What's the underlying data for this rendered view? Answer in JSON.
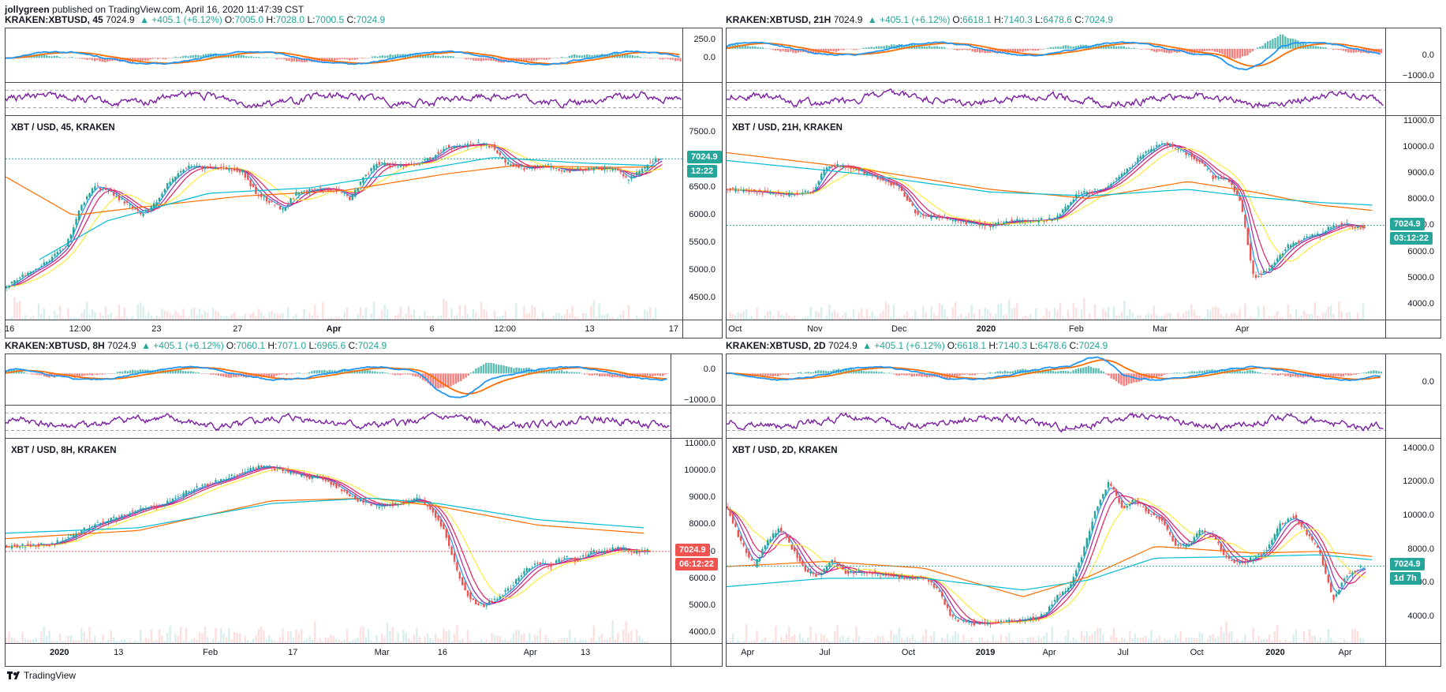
{
  "publish_info": {
    "author": "jollygreen",
    "text": "published on TradingView.com, April 16, 2020 11:47:39 CST"
  },
  "footer": {
    "logo_text": "TradingView"
  },
  "colors": {
    "up": "#26a69a",
    "down": "#ef5350",
    "ema_blue": "#2196f3",
    "ema_purple": "#9c27b0",
    "ema_magenta": "#e91e63",
    "ema_yellow": "#ffeb3b",
    "ema_orange": "#ff6d00",
    "ema_cyan": "#00bcd4",
    "rsi": "#7b1fa2",
    "macd_line": "#2196f3",
    "signal_line": "#ff6d00",
    "last_price_green": "#26a69a",
    "last_price_red": "#ef5350"
  },
  "panels": [
    {
      "symbol": "KRAKEN:XBTUSD, 45",
      "price": "7024.9",
      "change": "▲ +405.1 (+6.12%)",
      "o_label": "O:",
      "o": "7005.0",
      "h_label": "H:",
      "h": "7028.0",
      "l_label": "L:",
      "l": "7000.5",
      "c_label": "C:",
      "c": "7024.9",
      "chart_title": "XBT / USD, 45, KRAKEN",
      "macd_axis": [
        "250.0",
        "0.0"
      ],
      "price_axis": [
        "7500.0",
        "7000.0",
        "6500.0",
        "6000.0",
        "5500.0",
        "5000.0",
        "4500.0"
      ],
      "time_axis": [
        {
          "label": "16",
          "bold": false
        },
        {
          "label": "12:00",
          "bold": false
        },
        {
          "label": "23",
          "bold": false
        },
        {
          "label": "27",
          "bold": false
        },
        {
          "label": "Apr",
          "bold": true
        },
        {
          "label": "6",
          "bold": false
        },
        {
          "label": "12:00",
          "bold": false
        },
        {
          "label": "13",
          "bold": false
        },
        {
          "label": "17",
          "bold": false
        }
      ],
      "last_price": "7024.9",
      "countdown": "12:22",
      "tag_color": "green"
    },
    {
      "symbol": "KRAKEN:XBTUSD, 21H",
      "price": "7024.9",
      "change": "▲ +405.1 (+6.12%)",
      "o_label": "O:",
      "o": "6618.1",
      "h_label": "H:",
      "h": "7140.3",
      "l_label": "L:",
      "l": "6478.6",
      "c_label": "C:",
      "c": "7024.9",
      "chart_title": "XBT / USD, 21H, KRAKEN",
      "macd_axis": [
        "0.0",
        "−1000.0"
      ],
      "price_axis": [
        "11000.0",
        "10000.0",
        "9000.0",
        "8000.0",
        "7000.0",
        "6000.0",
        "5000.0",
        "4000.0"
      ],
      "time_axis": [
        {
          "label": "Oct",
          "bold": false
        },
        {
          "label": "Nov",
          "bold": false
        },
        {
          "label": "Dec",
          "bold": false
        },
        {
          "label": "2020",
          "bold": true
        },
        {
          "label": "Feb",
          "bold": false
        },
        {
          "label": "Mar",
          "bold": false
        },
        {
          "label": "Apr",
          "bold": false
        }
      ],
      "last_price": "7024.9",
      "countdown": "03:12:22",
      "tag_color": "green"
    },
    {
      "symbol": "KRAKEN:XBTUSD, 8H",
      "price": "7024.9",
      "change": "▲ +405.1 (+6.12%)",
      "o_label": "O:",
      "o": "7060.1",
      "h_label": "H:",
      "h": "7071.0",
      "l_label": "L:",
      "l": "6965.6",
      "c_label": "C:",
      "c": "7024.9",
      "chart_title": "XBT / USD, 8H, KRAKEN",
      "macd_axis": [
        "0.0",
        "−1000.0"
      ],
      "price_axis": [
        "11000.0",
        "10000.0",
        "9000.0",
        "8000.0",
        "7000.0",
        "6000.0",
        "5000.0",
        "4000.0"
      ],
      "time_axis": [
        {
          "label": "2020",
          "bold": true
        },
        {
          "label": "13",
          "bold": false
        },
        {
          "label": "Feb",
          "bold": false
        },
        {
          "label": "17",
          "bold": false
        },
        {
          "label": "Mar",
          "bold": false
        },
        {
          "label": "16",
          "bold": false
        },
        {
          "label": "Apr",
          "bold": false
        },
        {
          "label": "13",
          "bold": false
        }
      ],
      "last_price": "7024.9",
      "countdown": "06:12:22",
      "tag_color": "red"
    },
    {
      "symbol": "KRAKEN:XBTUSD, 2D",
      "price": "7024.9",
      "change": "▲ +405.1 (+6.12%)",
      "o_label": "O:",
      "o": "6618.1",
      "h_label": "H:",
      "h": "7140.3",
      "l_label": "L:",
      "l": "6478.6",
      "c_label": "C:",
      "c": "7024.9",
      "chart_title": "XBT / USD, 2D, KRAKEN",
      "macd_axis": [
        "0.0"
      ],
      "price_axis": [
        "14000.0",
        "12000.0",
        "10000.0",
        "8000.0",
        "6000.0",
        "4000.0"
      ],
      "time_axis": [
        {
          "label": "Apr",
          "bold": false
        },
        {
          "label": "Jul",
          "bold": false
        },
        {
          "label": "Oct",
          "bold": false
        },
        {
          "label": "2019",
          "bold": true
        },
        {
          "label": "Apr",
          "bold": false
        },
        {
          "label": "Jul",
          "bold": false
        },
        {
          "label": "Oct",
          "bold": false
        },
        {
          "label": "2020",
          "bold": true
        },
        {
          "label": "Apr",
          "bold": false
        }
      ],
      "last_price": "7024.9",
      "countdown": "1d 7h",
      "tag_color": "green"
    }
  ],
  "chart_data": [
    {
      "type": "line",
      "subtype": "candlestick",
      "title": "XBT / USD, 45, KRAKEN",
      "ylim": [
        4100,
        7800
      ],
      "x_range": [
        "Mar 16",
        "Apr 17"
      ],
      "last_price": 7024.9,
      "price_path": [
        [
          0,
          4700
        ],
        [
          0.03,
          4950
        ],
        [
          0.06,
          5150
        ],
        [
          0.09,
          5500
        ],
        [
          0.11,
          6150
        ],
        [
          0.13,
          6550
        ],
        [
          0.15,
          6450
        ],
        [
          0.18,
          6200
        ],
        [
          0.2,
          6000
        ],
        [
          0.22,
          6200
        ],
        [
          0.24,
          6600
        ],
        [
          0.27,
          6900
        ],
        [
          0.3,
          6850
        ],
        [
          0.33,
          6850
        ],
        [
          0.35,
          6800
        ],
        [
          0.37,
          6400
        ],
        [
          0.39,
          6250
        ],
        [
          0.41,
          6100
        ],
        [
          0.43,
          6400
        ],
        [
          0.45,
          6450
        ],
        [
          0.47,
          6500
        ],
        [
          0.49,
          6450
        ],
        [
          0.51,
          6300
        ],
        [
          0.53,
          6700
        ],
        [
          0.55,
          6950
        ],
        [
          0.58,
          6900
        ],
        [
          0.61,
          6950
        ],
        [
          0.63,
          7050
        ],
        [
          0.65,
          7250
        ],
        [
          0.67,
          7250
        ],
        [
          0.7,
          7300
        ],
        [
          0.72,
          7250
        ],
        [
          0.74,
          6950
        ],
        [
          0.77,
          6850
        ],
        [
          0.8,
          6900
        ],
        [
          0.83,
          6800
        ],
        [
          0.86,
          6850
        ],
        [
          0.9,
          6850
        ],
        [
          0.92,
          6650
        ],
        [
          0.94,
          6800
        ],
        [
          0.96,
          7030
        ]
      ],
      "ema_slow": [
        [
          0,
          6700
        ],
        [
          0.1,
          6000
        ],
        [
          0.2,
          6150
        ],
        [
          0.35,
          6350
        ],
        [
          0.5,
          6450
        ],
        [
          0.65,
          6750
        ],
        [
          0.75,
          6900
        ],
        [
          0.9,
          6870
        ],
        [
          0.96,
          6880
        ]
      ],
      "ema_slow2": [
        [
          0.05,
          5200
        ],
        [
          0.15,
          5900
        ],
        [
          0.3,
          6400
        ],
        [
          0.45,
          6500
        ],
        [
          0.6,
          6800
        ],
        [
          0.72,
          7050
        ],
        [
          0.85,
          6950
        ],
        [
          0.96,
          6900
        ]
      ]
    },
    {
      "type": "line",
      "subtype": "candlestick",
      "title": "XBT / USD, 21H, KRAKEN",
      "ylim": [
        3400,
        11200
      ],
      "x_range": [
        "Sep 24 2019",
        "Apr 16 2020"
      ],
      "last_price": 7024.9,
      "price_path": [
        [
          0,
          8400
        ],
        [
          0.05,
          8300
        ],
        [
          0.09,
          8200
        ],
        [
          0.13,
          8300
        ],
        [
          0.15,
          9300
        ],
        [
          0.18,
          9300
        ],
        [
          0.22,
          8900
        ],
        [
          0.26,
          8500
        ],
        [
          0.29,
          7400
        ],
        [
          0.33,
          7300
        ],
        [
          0.37,
          7100
        ],
        [
          0.4,
          7000
        ],
        [
          0.43,
          7200
        ],
        [
          0.47,
          7200
        ],
        [
          0.5,
          7300
        ],
        [
          0.53,
          8200
        ],
        [
          0.57,
          8400
        ],
        [
          0.6,
          9000
        ],
        [
          0.63,
          9700
        ],
        [
          0.66,
          10200
        ],
        [
          0.68,
          10000
        ],
        [
          0.7,
          9700
        ],
        [
          0.72,
          9400
        ],
        [
          0.74,
          8800
        ],
        [
          0.76,
          8800
        ],
        [
          0.78,
          7900
        ],
        [
          0.8,
          5000
        ],
        [
          0.82,
          5300
        ],
        [
          0.85,
          6200
        ],
        [
          0.88,
          6600
        ],
        [
          0.9,
          6700
        ],
        [
          0.92,
          7000
        ],
        [
          0.94,
          7100
        ],
        [
          0.96,
          6900
        ],
        [
          0.98,
          7030
        ]
      ],
      "ema_slow": [
        [
          0,
          9800
        ],
        [
          0.2,
          9200
        ],
        [
          0.4,
          8400
        ],
        [
          0.55,
          8050
        ],
        [
          0.7,
          8700
        ],
        [
          0.8,
          8300
        ],
        [
          0.9,
          7800
        ],
        [
          0.98,
          7600
        ]
      ],
      "ema_slow2": [
        [
          0,
          9500
        ],
        [
          0.2,
          9000
        ],
        [
          0.4,
          8300
        ],
        [
          0.55,
          8150
        ],
        [
          0.7,
          8400
        ],
        [
          0.8,
          8100
        ],
        [
          0.9,
          7900
        ],
        [
          0.98,
          7800
        ]
      ]
    },
    {
      "type": "line",
      "subtype": "candlestick",
      "title": "XBT / USD, 8H, KRAKEN",
      "ylim": [
        3600,
        11200
      ],
      "x_range": [
        "Dec 20 2019",
        "Apr 16 2020"
      ],
      "last_price": 7024.9,
      "price_path": [
        [
          0,
          7200
        ],
        [
          0.04,
          7250
        ],
        [
          0.07,
          7300
        ],
        [
          0.1,
          7600
        ],
        [
          0.13,
          8000
        ],
        [
          0.17,
          8300
        ],
        [
          0.2,
          8600
        ],
        [
          0.24,
          8800
        ],
        [
          0.27,
          9200
        ],
        [
          0.3,
          9500
        ],
        [
          0.33,
          9700
        ],
        [
          0.36,
          10000
        ],
        [
          0.39,
          10200
        ],
        [
          0.42,
          10000
        ],
        [
          0.45,
          9800
        ],
        [
          0.48,
          9700
        ],
        [
          0.5,
          9400
        ],
        [
          0.53,
          8900
        ],
        [
          0.56,
          8700
        ],
        [
          0.59,
          8800
        ],
        [
          0.62,
          9000
        ],
        [
          0.64,
          8600
        ],
        [
          0.66,
          7800
        ],
        [
          0.68,
          6200
        ],
        [
          0.7,
          5200
        ],
        [
          0.72,
          5000
        ],
        [
          0.74,
          5300
        ],
        [
          0.76,
          5700
        ],
        [
          0.78,
          6300
        ],
        [
          0.8,
          6600
        ],
        [
          0.82,
          6500
        ],
        [
          0.84,
          6800
        ],
        [
          0.86,
          6700
        ],
        [
          0.88,
          7000
        ],
        [
          0.9,
          7000
        ],
        [
          0.92,
          7200
        ],
        [
          0.94,
          7000
        ],
        [
          0.96,
          7030
        ]
      ],
      "ema_slow": [
        [
          0,
          7500
        ],
        [
          0.2,
          7800
        ],
        [
          0.4,
          8900
        ],
        [
          0.55,
          9000
        ],
        [
          0.65,
          8700
        ],
        [
          0.8,
          8000
        ],
        [
          0.96,
          7700
        ]
      ],
      "ema_slow2": [
        [
          0,
          7700
        ],
        [
          0.2,
          7900
        ],
        [
          0.4,
          8800
        ],
        [
          0.55,
          9000
        ],
        [
          0.65,
          8800
        ],
        [
          0.8,
          8200
        ],
        [
          0.96,
          7900
        ]
      ]
    },
    {
      "type": "line",
      "subtype": "candlestick",
      "title": "XBT / USD, 2D, KRAKEN",
      "ylim": [
        2400,
        14600
      ],
      "x_range": [
        "Feb 2018",
        "Apr 2020"
      ],
      "last_price": 7024.9,
      "price_path": [
        [
          0,
          10500
        ],
        [
          0.02,
          8500
        ],
        [
          0.04,
          7000
        ],
        [
          0.06,
          8500
        ],
        [
          0.08,
          9300
        ],
        [
          0.1,
          8000
        ],
        [
          0.12,
          6700
        ],
        [
          0.14,
          6400
        ],
        [
          0.16,
          7400
        ],
        [
          0.18,
          6600
        ],
        [
          0.2,
          6700
        ],
        [
          0.24,
          6500
        ],
        [
          0.28,
          6300
        ],
        [
          0.3,
          6400
        ],
        [
          0.32,
          5600
        ],
        [
          0.34,
          4000
        ],
        [
          0.36,
          3700
        ],
        [
          0.38,
          3600
        ],
        [
          0.42,
          3700
        ],
        [
          0.46,
          3900
        ],
        [
          0.48,
          4100
        ],
        [
          0.5,
          5200
        ],
        [
          0.52,
          5800
        ],
        [
          0.54,
          7800
        ],
        [
          0.56,
          10500
        ],
        [
          0.58,
          12000
        ],
        [
          0.6,
          10500
        ],
        [
          0.62,
          11000
        ],
        [
          0.64,
          10200
        ],
        [
          0.66,
          9800
        ],
        [
          0.68,
          8300
        ],
        [
          0.7,
          8200
        ],
        [
          0.72,
          9200
        ],
        [
          0.74,
          8700
        ],
        [
          0.76,
          7400
        ],
        [
          0.78,
          7200
        ],
        [
          0.8,
          7500
        ],
        [
          0.82,
          8000
        ],
        [
          0.84,
          9500
        ],
        [
          0.86,
          10000
        ],
        [
          0.88,
          9000
        ],
        [
          0.9,
          7800
        ],
        [
          0.92,
          5000
        ],
        [
          0.94,
          6500
        ],
        [
          0.96,
          6900
        ],
        [
          0.98,
          7030
        ]
      ],
      "ema_slow": [
        [
          0,
          7000
        ],
        [
          0.15,
          7300
        ],
        [
          0.3,
          6900
        ],
        [
          0.45,
          5200
        ],
        [
          0.55,
          6400
        ],
        [
          0.65,
          8200
        ],
        [
          0.8,
          7800
        ],
        [
          0.9,
          7900
        ],
        [
          0.98,
          7600
        ]
      ],
      "ema_slow2": [
        [
          0,
          5800
        ],
        [
          0.15,
          6300
        ],
        [
          0.3,
          6300
        ],
        [
          0.45,
          5600
        ],
        [
          0.55,
          6200
        ],
        [
          0.65,
          7500
        ],
        [
          0.8,
          7600
        ],
        [
          0.9,
          7700
        ],
        [
          0.98,
          7400
        ]
      ]
    }
  ]
}
